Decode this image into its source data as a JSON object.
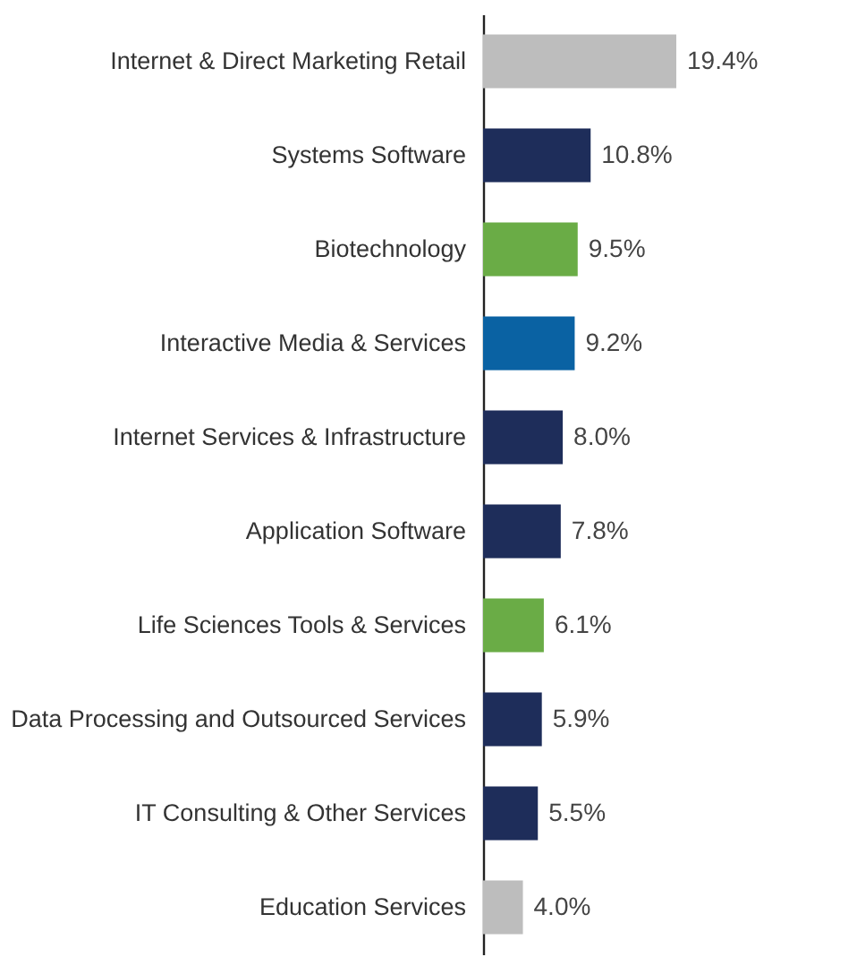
{
  "chart_data": {
    "type": "bar",
    "orientation": "horizontal",
    "categories": [
      "Internet & Direct Marketing Retail",
      "Systems Software",
      "Biotechnology",
      "Interactive Media & Services",
      "Internet Services & Infrastructure",
      "Application Software",
      "Life Sciences Tools & Services",
      "Data Processing and Outsourced Services",
      "IT Consulting & Other Services",
      "Education Services"
    ],
    "values": [
      19.4,
      10.8,
      9.5,
      9.2,
      8.0,
      7.8,
      6.1,
      5.9,
      5.5,
      4.0
    ],
    "colors": [
      "#bdbdbd",
      "#1e2d5a",
      "#6aac46",
      "#0a62a3",
      "#1e2d5a",
      "#1e2d5a",
      "#6aac46",
      "#1e2d5a",
      "#1e2d5a",
      "#bdbdbd"
    ],
    "value_labels": [
      "19.4%",
      "10.8%",
      "9.5%",
      "9.2%",
      "8.0%",
      "7.8%",
      "6.1%",
      "5.9%",
      "5.5%",
      "4.0%"
    ],
    "grid": false
  }
}
